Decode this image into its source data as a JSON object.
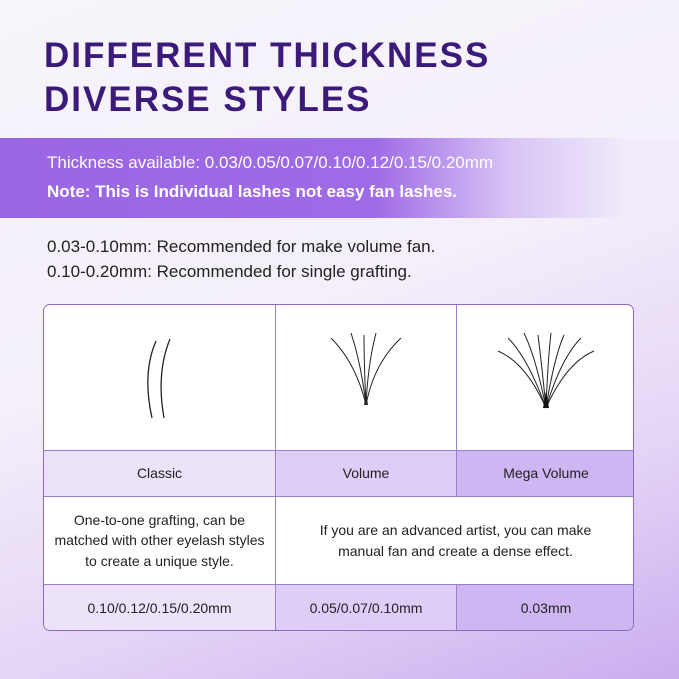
{
  "title": {
    "line1": "DIFFERENT THICKNESS",
    "line2": "DIVERSE STYLES"
  },
  "banner": {
    "thickness": "Thickness available: 0.03/0.05/0.07/0.10/0.12/0.15/0.20mm",
    "note": "Note: This is Individual lashes not easy fan lashes."
  },
  "recommendations": [
    "0.03-0.10mm: Recommended for make volume fan.",
    "0.10-0.20mm: Recommended for single grafting."
  ],
  "table": {
    "styles": [
      {
        "name": "Classic",
        "image": "classic-lash-icon",
        "size": "0.10/0.12/0.15/0.20mm"
      },
      {
        "name": "Volume",
        "image": "volume-fan-icon",
        "size": "0.05/0.07/0.10mm"
      },
      {
        "name": "Mega Volume",
        "image": "mega-volume-fan-icon",
        "size": "0.03mm"
      }
    ],
    "desc_classic": "One-to-one grafting, can be matched with other eyelash styles to create a unique style.",
    "desc_volume": "If you are an advanced artist, you can make manual fan and create a dense effect."
  },
  "colors": {
    "title": "#3b1a79",
    "banner": "#9b66e4",
    "classic_cell": "#ece3fb",
    "volume_cell": "#ddcdf7",
    "mega_cell": "#cdb6f2"
  }
}
